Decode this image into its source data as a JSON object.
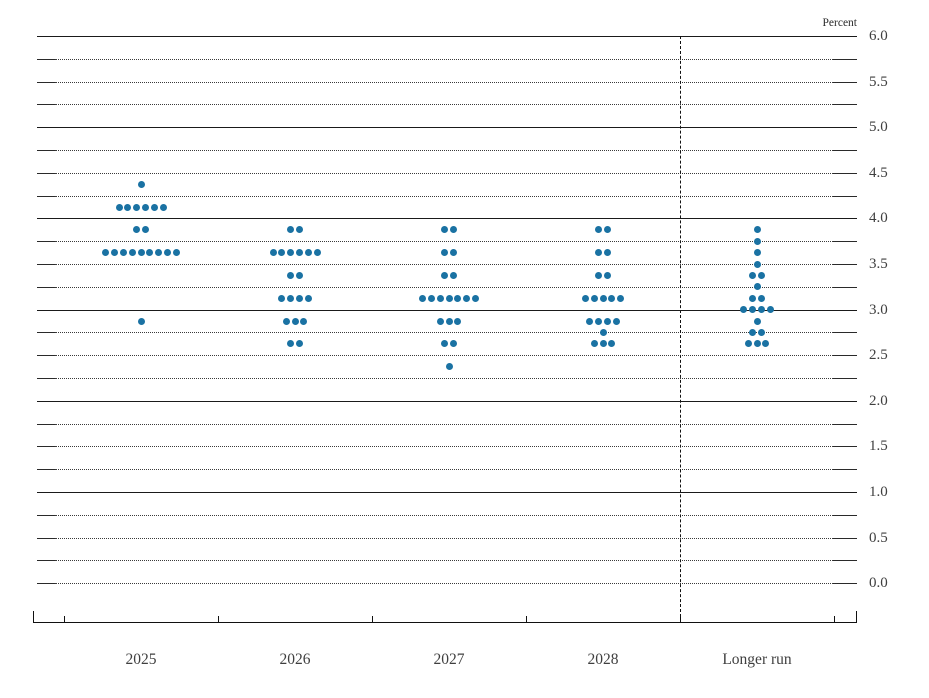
{
  "header": {
    "unit_label": "Percent"
  },
  "colors": {
    "dot": "#1a72a3",
    "grid_solid": "#1a1a1a",
    "grid_dotted": "#3a3a3a",
    "axis": "#111111",
    "label_text": "#3f3f3f"
  },
  "chart_data": {
    "type": "scatter",
    "title": "",
    "subtitle": "",
    "ylabel": "Percent",
    "xlabel": "",
    "ylim": [
      0.0,
      6.0
    ],
    "grid_step": 0.25,
    "label_step": 0.5,
    "grid_on": true,
    "legend": null,
    "solid_gridline_values": [
      6.0,
      5.0,
      4.0,
      3.0,
      2.0,
      1.0
    ],
    "y_tick_labels": [
      {
        "value": 6.0,
        "label": "6.0"
      },
      {
        "value": 5.5,
        "label": "5.5"
      },
      {
        "value": 5.0,
        "label": "5.0"
      },
      {
        "value": 4.5,
        "label": "4.5"
      },
      {
        "value": 4.0,
        "label": "4.0"
      },
      {
        "value": 3.5,
        "label": "3.5"
      },
      {
        "value": 3.0,
        "label": "3.0"
      },
      {
        "value": 2.5,
        "label": "2.5"
      },
      {
        "value": 2.0,
        "label": "2.0"
      },
      {
        "value": 1.5,
        "label": "1.5"
      },
      {
        "value": 1.0,
        "label": "1.0"
      },
      {
        "value": 0.5,
        "label": "0.5"
      },
      {
        "value": 0.0,
        "label": "0.0"
      }
    ],
    "categories": [
      "2025",
      "2026",
      "2027",
      "2028",
      "Longer run"
    ],
    "separator_before_category": "Longer run",
    "series": [
      {
        "category": "2025",
        "dots": [
          {
            "rate": 4.375,
            "count": 1
          },
          {
            "rate": 4.125,
            "count": 6
          },
          {
            "rate": 3.875,
            "count": 2
          },
          {
            "rate": 3.625,
            "count": 9
          },
          {
            "rate": 2.875,
            "count": 1
          }
        ]
      },
      {
        "category": "2026",
        "dots": [
          {
            "rate": 3.875,
            "count": 2
          },
          {
            "rate": 3.625,
            "count": 6
          },
          {
            "rate": 3.375,
            "count": 2
          },
          {
            "rate": 3.125,
            "count": 4
          },
          {
            "rate": 2.875,
            "count": 3
          },
          {
            "rate": 2.625,
            "count": 2
          }
        ]
      },
      {
        "category": "2027",
        "dots": [
          {
            "rate": 3.875,
            "count": 2
          },
          {
            "rate": 3.625,
            "count": 2
          },
          {
            "rate": 3.375,
            "count": 2
          },
          {
            "rate": 3.125,
            "count": 7
          },
          {
            "rate": 2.875,
            "count": 3
          },
          {
            "rate": 2.625,
            "count": 2
          },
          {
            "rate": 2.375,
            "count": 1
          }
        ]
      },
      {
        "category": "2028",
        "dots": [
          {
            "rate": 3.875,
            "count": 2
          },
          {
            "rate": 3.625,
            "count": 2
          },
          {
            "rate": 3.375,
            "count": 2
          },
          {
            "rate": 3.125,
            "count": 5
          },
          {
            "rate": 2.875,
            "count": 4
          },
          {
            "rate": 2.75,
            "count": 1
          },
          {
            "rate": 2.625,
            "count": 3
          }
        ]
      },
      {
        "category": "Longer run",
        "dots": [
          {
            "rate": 3.875,
            "count": 1
          },
          {
            "rate": 3.75,
            "count": 1
          },
          {
            "rate": 3.625,
            "count": 1
          },
          {
            "rate": 3.5,
            "count": 1
          },
          {
            "rate": 3.375,
            "count": 2
          },
          {
            "rate": 3.25,
            "count": 1
          },
          {
            "rate": 3.125,
            "count": 2
          },
          {
            "rate": 3.0,
            "count": 4
          },
          {
            "rate": 2.875,
            "count": 1
          },
          {
            "rate": 2.75,
            "count": 2
          },
          {
            "rate": 2.625,
            "count": 3
          }
        ]
      }
    ]
  }
}
